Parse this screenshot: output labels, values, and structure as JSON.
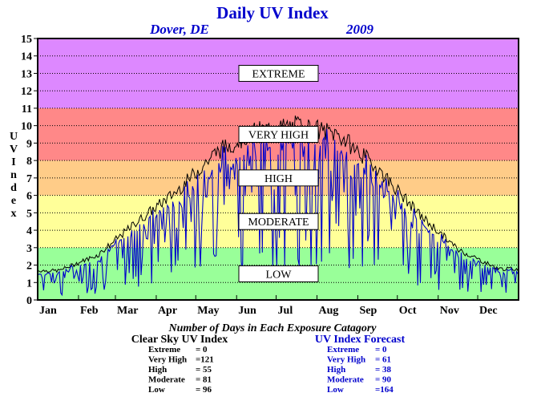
{
  "chart_data": {
    "type": "line",
    "title": "Daily UV Index",
    "location": "Dover, DE",
    "year": "2009",
    "ylabel": "UV Index",
    "ylim": [
      0,
      15
    ],
    "yticks": [
      "0",
      "1",
      "2",
      "3",
      "4",
      "5",
      "6",
      "7",
      "8",
      "9",
      "10",
      "11",
      "12",
      "13",
      "14",
      "15"
    ],
    "months": [
      "Jan",
      "Feb",
      "Mar",
      "Apr",
      "May",
      "Jun",
      "Jul",
      "Aug",
      "Sep",
      "Oct",
      "Nov",
      "Dec"
    ],
    "grid": true,
    "bands": [
      {
        "label": "LOW",
        "from": 0,
        "to": 3,
        "color": "#99ff99"
      },
      {
        "label": "MODERATE",
        "from": 3,
        "to": 6,
        "color": "#ffff99"
      },
      {
        "label": "HIGH",
        "from": 6,
        "to": 8,
        "color": "#ffcc88"
      },
      {
        "label": "VERY HIGH",
        "from": 8,
        "to": 11,
        "color": "#ff8888"
      },
      {
        "label": "EXTREME",
        "from": 11,
        "to": 15,
        "color": "#dd88ff"
      }
    ],
    "series": [
      {
        "name": "Clear Sky UV Index",
        "color": "#000000",
        "monthly_mean": [
          1.7,
          2.6,
          4.5,
          6.3,
          8.6,
          9.8,
          10.1,
          9.6,
          7.6,
          5.0,
          2.9,
          1.8
        ]
      },
      {
        "name": "UV Index Forecast",
        "color": "#0000cc",
        "monthly_mean": [
          1.2,
          1.9,
          3.3,
          4.6,
          6.6,
          7.4,
          7.6,
          7.6,
          5.9,
          3.6,
          1.9,
          1.2
        ]
      }
    ]
  },
  "summary": {
    "title": "Number of Days in Each Exposure Catagory",
    "clear_sky": {
      "heading": "Clear Sky UV Index",
      "rows": [
        {
          "label": "Extreme",
          "value": "=    0"
        },
        {
          "label": "Very High",
          "value": "=121"
        },
        {
          "label": "High",
          "value": "=   55"
        },
        {
          "label": "Moderate",
          "value": "=   81"
        },
        {
          "label": "Low",
          "value": "=   96"
        }
      ]
    },
    "forecast": {
      "heading": "UV Index Forecast",
      "rows": [
        {
          "label": "Extreme",
          "value": "=    0"
        },
        {
          "label": "Very High",
          "value": "=   61"
        },
        {
          "label": "High",
          "value": "=   38"
        },
        {
          "label": "Moderate",
          "value": "=   90"
        },
        {
          "label": "Low",
          "value": "=164"
        }
      ]
    }
  }
}
